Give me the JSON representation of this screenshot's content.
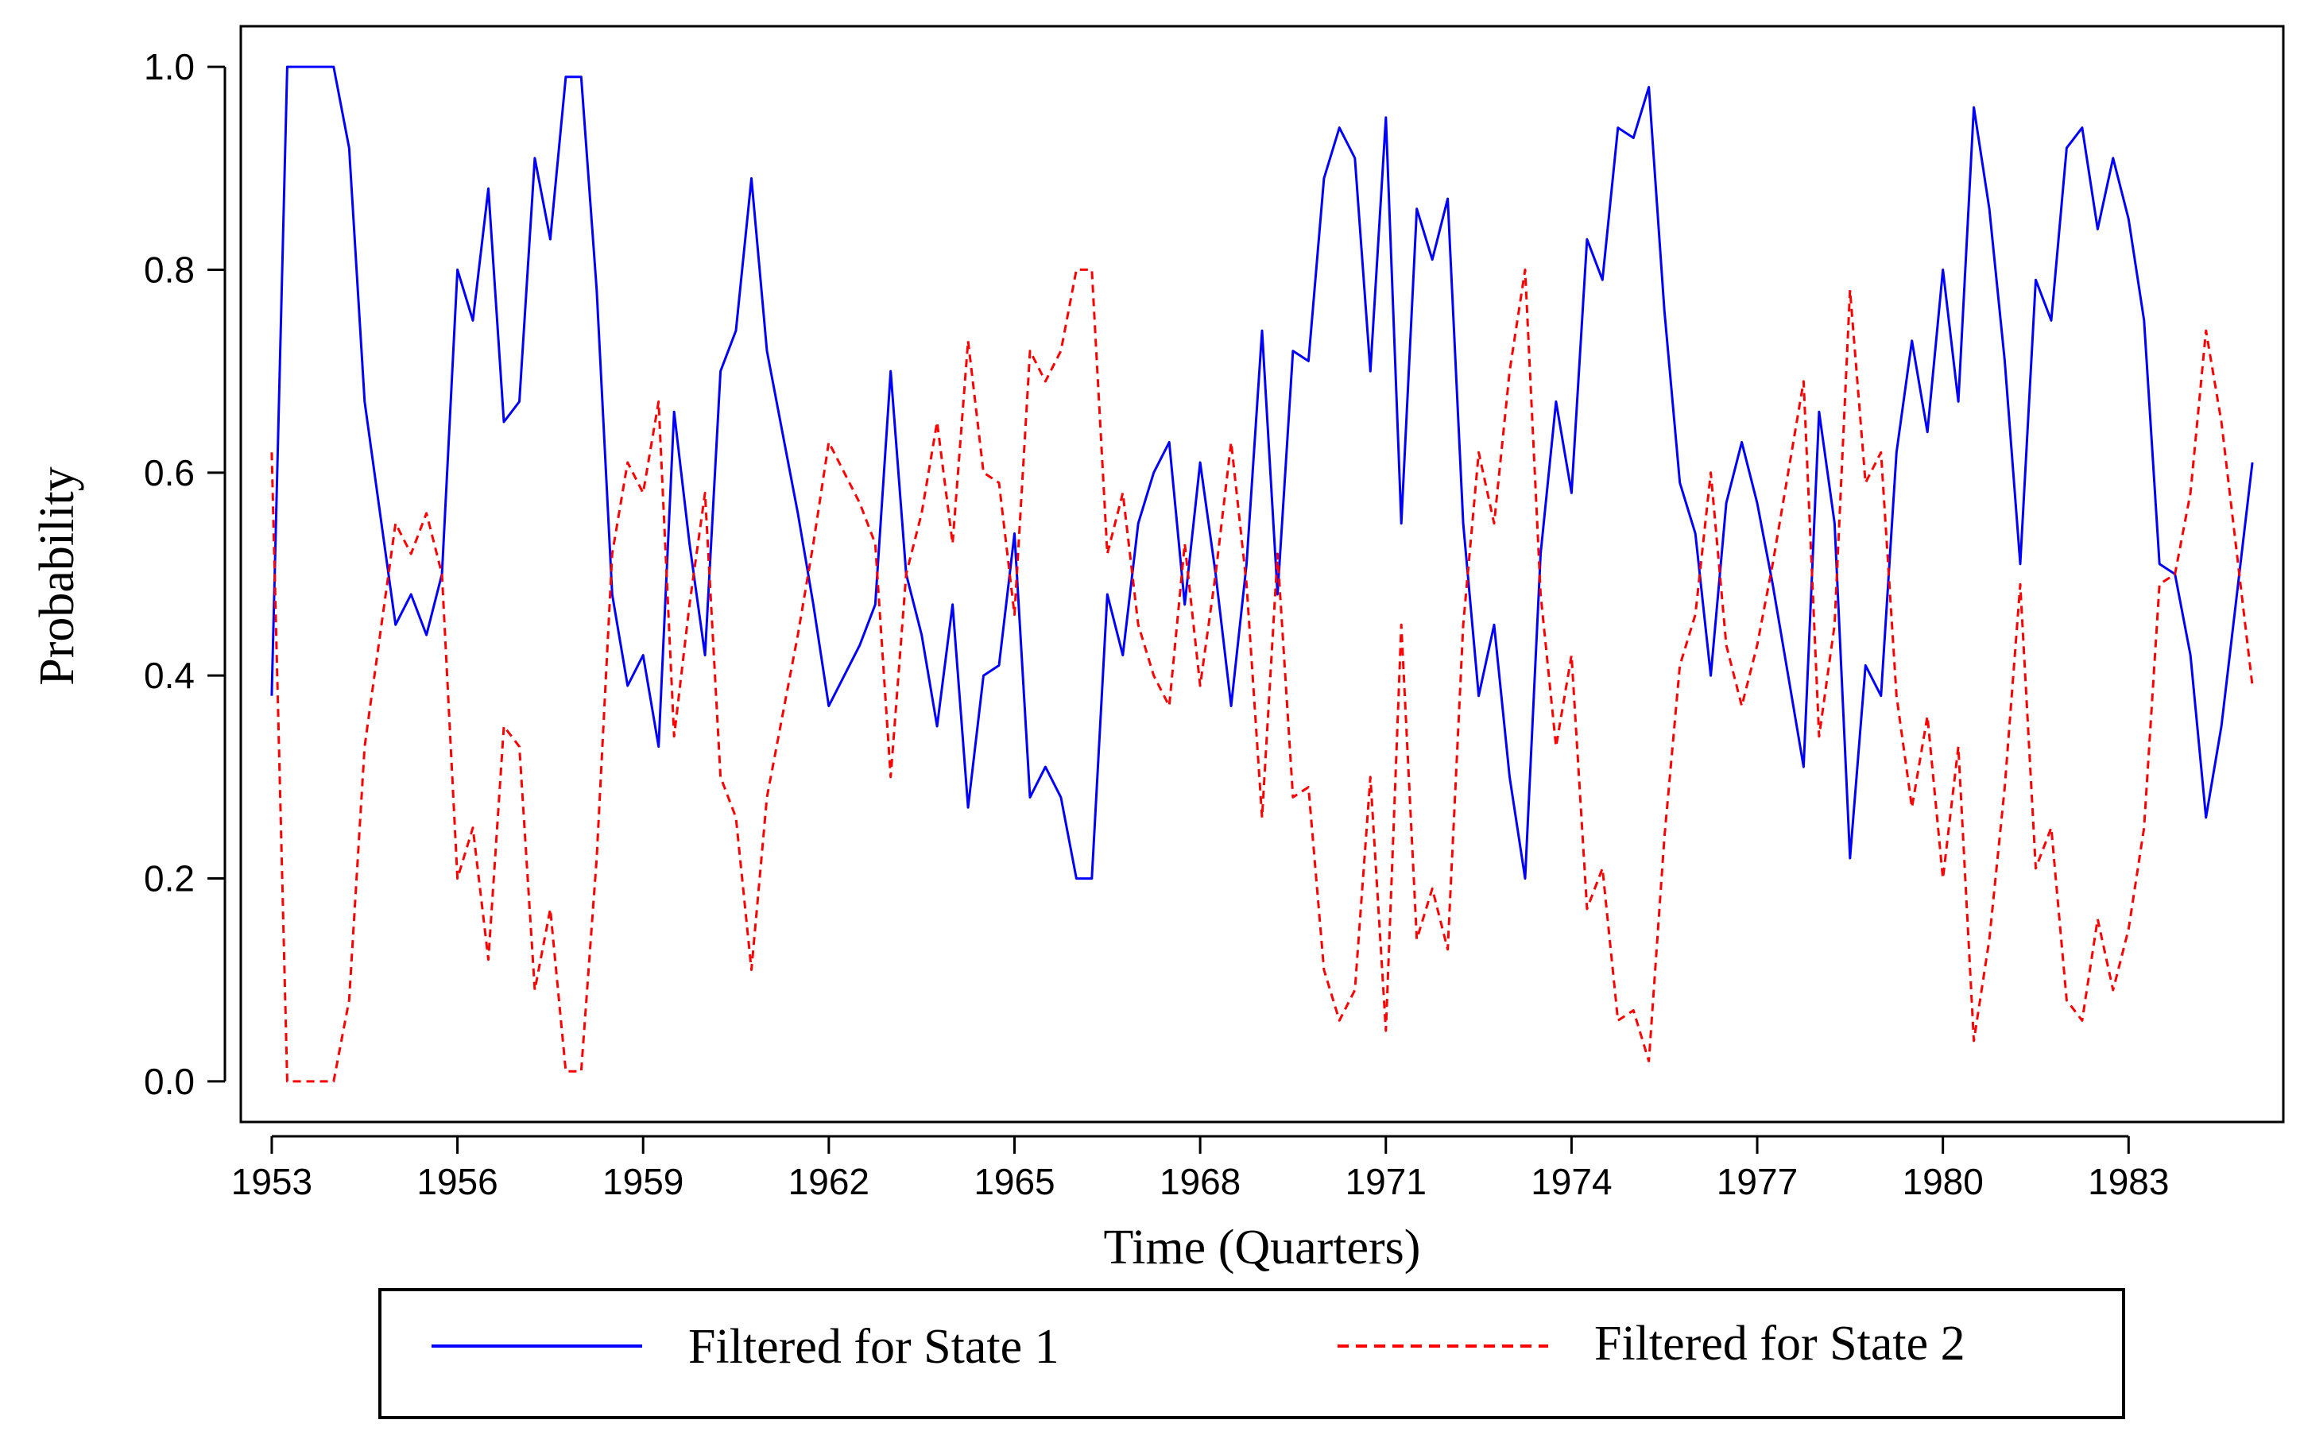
{
  "chart_data": {
    "type": "line",
    "title": "",
    "xlabel": "Time (Quarters)",
    "ylabel": "Probability",
    "xlim": [
      1952.5,
      1985.5
    ],
    "ylim": [
      -0.04,
      1.04
    ],
    "x_ticks": [
      1953,
      1956,
      1959,
      1962,
      1965,
      1968,
      1971,
      1974,
      1977,
      1980,
      1983
    ],
    "x_tick_labels": [
      "1953",
      "1956",
      "1959",
      "1962",
      "1965",
      "1968",
      "1971",
      "1974",
      "1977",
      "1980",
      "1983"
    ],
    "y_ticks": [
      0.0,
      0.2,
      0.4,
      0.6,
      0.8,
      1.0
    ],
    "y_tick_labels": [
      "0.0",
      "0.2",
      "0.4",
      "0.6",
      "0.8",
      "1.0"
    ],
    "grid": false,
    "legend_position": "bottom",
    "x_start": 1953.0,
    "x_step": 0.25,
    "series": [
      {
        "name": "Filtered for State 1",
        "color": "#0000ff",
        "dash": "solid",
        "values": [
          0.38,
          1.0,
          1.0,
          1.0,
          1.0,
          0.92,
          0.67,
          0.56,
          0.45,
          0.48,
          0.44,
          0.5,
          0.8,
          0.75,
          0.88,
          0.65,
          0.67,
          0.91,
          0.83,
          0.99,
          0.99,
          0.78,
          0.48,
          0.39,
          0.42,
          0.33,
          0.66,
          0.53,
          0.42,
          0.7,
          0.74,
          0.89,
          0.72,
          0.64,
          0.56,
          0.47,
          0.37,
          0.4,
          0.43,
          0.47,
          0.7,
          0.5,
          0.44,
          0.35,
          0.47,
          0.27,
          0.4,
          0.41,
          0.54,
          0.28,
          0.31,
          0.28,
          0.2,
          0.2,
          0.48,
          0.42,
          0.55,
          0.6,
          0.63,
          0.47,
          0.61,
          0.5,
          0.37,
          0.51,
          0.74,
          0.48,
          0.72,
          0.71,
          0.89,
          0.94,
          0.91,
          0.7,
          0.95,
          0.55,
          0.86,
          0.81,
          0.87,
          0.55,
          0.38,
          0.45,
          0.3,
          0.2,
          0.52,
          0.67,
          0.58,
          0.83,
          0.79,
          0.94,
          0.93,
          0.98,
          0.76,
          0.59,
          0.54,
          0.4,
          0.57,
          0.63,
          0.57,
          0.49,
          0.4,
          0.31,
          0.66,
          0.55,
          0.22,
          0.41,
          0.38,
          0.62,
          0.73,
          0.64,
          0.8,
          0.67,
          0.96,
          0.86,
          0.71,
          0.51,
          0.79,
          0.75,
          0.92,
          0.94,
          0.84,
          0.91,
          0.85,
          0.75,
          0.51,
          0.5,
          0.42,
          0.26,
          0.35,
          0.48,
          0.61
        ]
      },
      {
        "name": "Filtered for State 2",
        "color": "#ff0000",
        "dash": "dashed",
        "values": [
          0.62,
          0.0,
          0.0,
          0.0,
          0.0,
          0.08,
          0.33,
          0.44,
          0.55,
          0.52,
          0.56,
          0.5,
          0.2,
          0.25,
          0.12,
          0.35,
          0.33,
          0.09,
          0.17,
          0.01,
          0.01,
          0.22,
          0.52,
          0.61,
          0.58,
          0.67,
          0.34,
          0.47,
          0.58,
          0.3,
          0.26,
          0.11,
          0.28,
          0.36,
          0.44,
          0.53,
          0.63,
          0.6,
          0.57,
          0.53,
          0.3,
          0.5,
          0.56,
          0.65,
          0.53,
          0.73,
          0.6,
          0.59,
          0.46,
          0.72,
          0.69,
          0.72,
          0.8,
          0.8,
          0.52,
          0.58,
          0.45,
          0.4,
          0.37,
          0.53,
          0.39,
          0.5,
          0.63,
          0.49,
          0.26,
          0.52,
          0.28,
          0.29,
          0.11,
          0.06,
          0.09,
          0.3,
          0.05,
          0.45,
          0.14,
          0.19,
          0.13,
          0.45,
          0.62,
          0.55,
          0.7,
          0.8,
          0.48,
          0.33,
          0.42,
          0.17,
          0.21,
          0.06,
          0.07,
          0.02,
          0.24,
          0.41,
          0.46,
          0.6,
          0.43,
          0.37,
          0.43,
          0.51,
          0.6,
          0.69,
          0.34,
          0.45,
          0.78,
          0.59,
          0.62,
          0.38,
          0.27,
          0.36,
          0.2,
          0.33,
          0.04,
          0.14,
          0.29,
          0.49,
          0.21,
          0.25,
          0.08,
          0.06,
          0.16,
          0.09,
          0.15,
          0.25,
          0.49,
          0.5,
          0.58,
          0.74,
          0.65,
          0.52,
          0.39
        ]
      }
    ]
  }
}
